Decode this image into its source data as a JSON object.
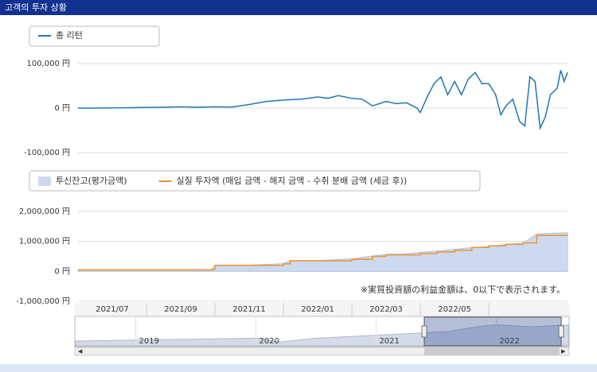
{
  "header": {
    "title": "고객의 투자 상황"
  },
  "chart_data": [
    {
      "type": "line",
      "series": [
        {
          "name": "총 리턴",
          "color": "#1f77b4",
          "values": [
            0,
            0,
            500,
            1000,
            1500,
            2000,
            3000,
            2000,
            3000,
            2500,
            8000,
            15000,
            18000,
            20000,
            25000,
            22000,
            28000,
            22000,
            20000,
            5000,
            15000,
            10000,
            12000,
            0,
            -10000,
            25000,
            55000,
            70000,
            30000,
            60000,
            30000,
            65000,
            80000,
            55000,
            55000,
            30000,
            -15000,
            5000,
            20000,
            -30000,
            -40000,
            70000,
            60000,
            -45000,
            -20000,
            30000,
            45000,
            85000,
            60000,
            80000
          ]
        }
      ],
      "x": [
        0,
        0.5,
        1,
        1.5,
        2,
        2.5,
        3,
        3.5,
        4,
        4.5,
        5,
        5.5,
        6,
        6.5,
        7,
        7.3,
        7.6,
        8,
        8.3,
        8.6,
        9,
        9.3,
        9.6,
        9.9,
        10,
        10.2,
        10.4,
        10.6,
        10.8,
        11,
        11.2,
        11.4,
        11.6,
        11.8,
        12,
        12.2,
        12.35,
        12.5,
        12.7,
        12.9,
        13.05,
        13.2,
        13.35,
        13.5,
        13.65,
        13.8,
        14,
        14.1,
        14.2,
        14.3
      ],
      "xlim": [
        0,
        14.3
      ],
      "ylim": [
        -100000,
        100000
      ],
      "yticks": [
        {
          "value": 100000,
          "label": "100,000 円"
        },
        {
          "value": 0,
          "label": "0 円"
        },
        {
          "value": -100000,
          "label": "-100,000 円"
        }
      ],
      "grid": true
    },
    {
      "type": "line",
      "annotation": "※実質投資額の利益金額は、0以下で表示されます。",
      "x": [
        0,
        1,
        2,
        3,
        3.9,
        4,
        5,
        6,
        6.2,
        7,
        8,
        8.6,
        9,
        9.5,
        10,
        10.5,
        11,
        11.5,
        12,
        12.5,
        13,
        13.4,
        14,
        14.3
      ],
      "series": [
        {
          "name": "투신잔고(평가금액)",
          "kind": "area",
          "color": "#cdd9ef",
          "values": [
            52000,
            52000,
            52000,
            53000,
            62000,
            205000,
            207000,
            258000,
            360000,
            362000,
            420000,
            515000,
            570000,
            575000,
            640000,
            680000,
            740000,
            790000,
            830000,
            900000,
            940000,
            1250000,
            1280000,
            1290000
          ]
        },
        {
          "name": "실질 투자액 (매입 금액 - 해지 금액 - 수취 분배 금액 (세금 후))",
          "kind": "step",
          "color": "#f0922b",
          "values": [
            50000,
            50000,
            50000,
            50000,
            60000,
            200000,
            200000,
            250000,
            350000,
            350000,
            400000,
            500000,
            550000,
            550000,
            600000,
            650000,
            700000,
            800000,
            850000,
            900000,
            950000,
            1200000,
            1200000,
            1200000
          ]
        }
      ],
      "xlim": [
        0,
        14.3
      ],
      "ylim": [
        -1000000,
        2000000
      ],
      "yticks": [
        {
          "value": 2000000,
          "label": "2,000,000 円"
        },
        {
          "value": 1000000,
          "label": "1,000,000 円"
        },
        {
          "value": 0,
          "label": "0 円"
        },
        {
          "value": -1000000,
          "label": "-1,000,000 円"
        }
      ],
      "xticks": [
        {
          "value": 1,
          "label": "2021/07"
        },
        {
          "value": 3,
          "label": "2021/09"
        },
        {
          "value": 5,
          "label": "2021/11"
        },
        {
          "value": 7,
          "label": "2022/01"
        },
        {
          "value": 9,
          "label": "2022/03"
        },
        {
          "value": 11,
          "label": "2022/05"
        }
      ],
      "grid": true
    },
    {
      "type": "navigator",
      "x": [
        2018.5,
        2019,
        2019.5,
        2020,
        2020.2,
        2020.5,
        2021,
        2021.3,
        2021.6,
        2021.9,
        2022,
        2022.3,
        2022.6
      ],
      "values": [
        10,
        12,
        14,
        16,
        8,
        16,
        22,
        26,
        30,
        42,
        44,
        40,
        44
      ],
      "xlim": [
        2018.5,
        2022.6
      ],
      "ylim": [
        0,
        60
      ],
      "xticks": [
        2019,
        2020,
        2021,
        2022
      ],
      "color": "#d4dbe8"
    }
  ]
}
